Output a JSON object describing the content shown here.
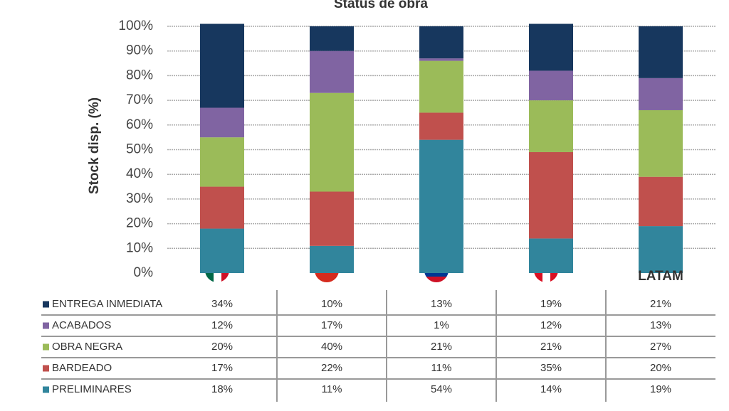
{
  "chart_data": {
    "type": "stacked-bar",
    "title": "Status de obra",
    "y_label": "Stock disp. (%)",
    "categories": [
      null,
      null,
      null,
      null,
      "LATAM"
    ],
    "ylim": [
      0,
      100
    ],
    "yticks": [
      {
        "value": 0,
        "label": "0%"
      },
      {
        "value": 10,
        "label": "10%"
      },
      {
        "value": 20,
        "label": "20%"
      },
      {
        "value": 30,
        "label": "30%"
      },
      {
        "value": 40,
        "label": "40%"
      },
      {
        "value": 50,
        "label": "50%"
      },
      {
        "value": 60,
        "label": "60%"
      },
      {
        "value": 70,
        "label": "70%"
      },
      {
        "value": 80,
        "label": "80%"
      },
      {
        "value": 90,
        "label": "90%"
      },
      {
        "value": 100,
        "label": "100%"
      }
    ],
    "grid": true,
    "series": [
      {
        "name": "PRELIMINARES",
        "color": "#31859c",
        "values": [
          18,
          11,
          54,
          14,
          19
        ],
        "value_labels": [
          "18%",
          "11%",
          "54%",
          "14%",
          "19%"
        ]
      },
      {
        "name": "BARDEADO",
        "color": "#c0504d",
        "values": [
          17,
          22,
          11,
          35,
          20
        ],
        "value_labels": [
          "17%",
          "22%",
          "11%",
          "35%",
          "20%"
        ]
      },
      {
        "name": "OBRA NEGRA",
        "color": "#9bbb59",
        "values": [
          20,
          40,
          21,
          21,
          27
        ],
        "value_labels": [
          "20%",
          "40%",
          "21%",
          "21%",
          "27%"
        ]
      },
      {
        "name": "ACABADOS",
        "color": "#8064a2",
        "values": [
          12,
          17,
          1,
          12,
          13
        ],
        "value_labels": [
          "12%",
          "17%",
          "1%",
          "12%",
          "13%"
        ]
      },
      {
        "name": "ENTREGA INMEDIATA",
        "color": "#17375e",
        "values": [
          34,
          10,
          13,
          19,
          21
        ],
        "value_labels": [
          "34%",
          "10%",
          "13%",
          "19%",
          "21%"
        ]
      }
    ]
  }
}
